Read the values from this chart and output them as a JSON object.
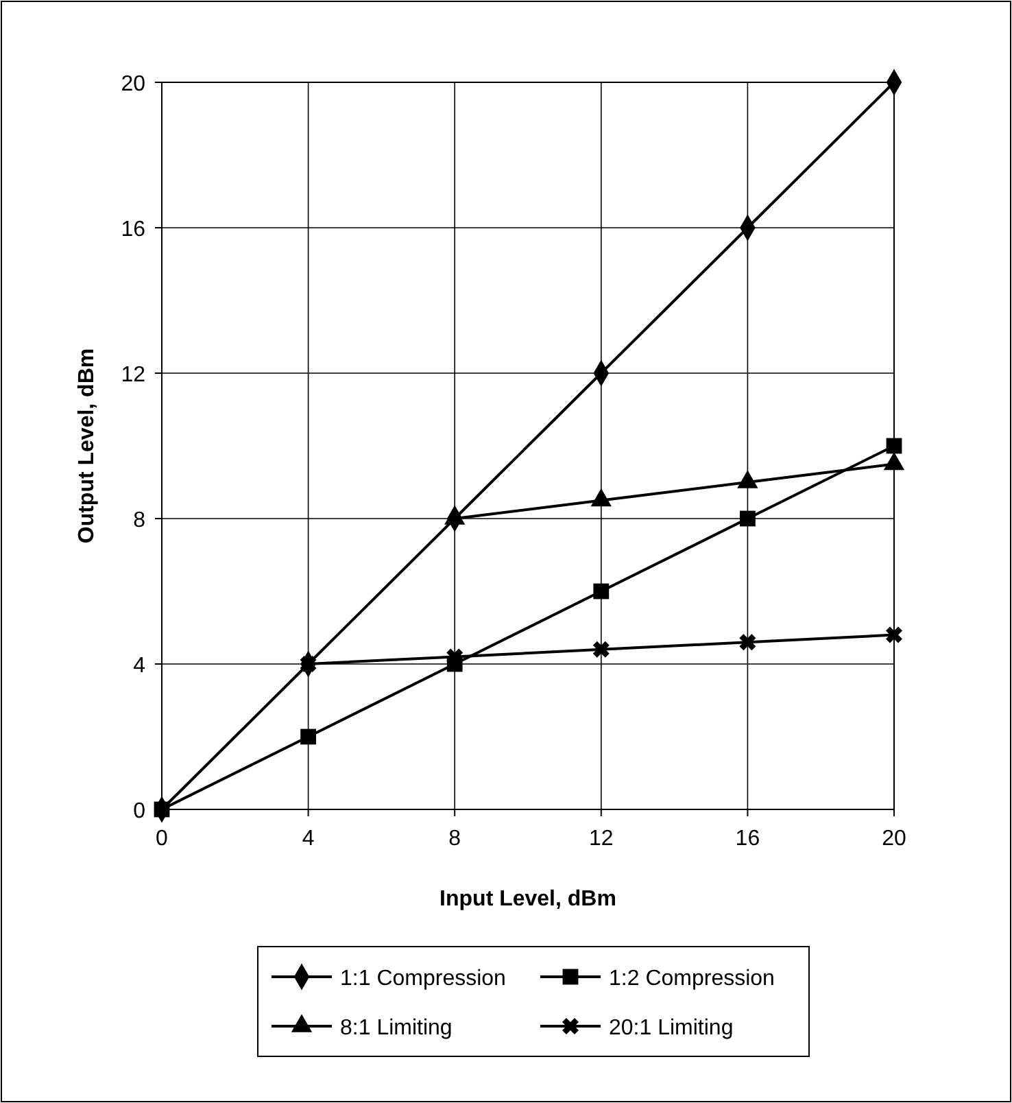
{
  "chart_data": {
    "type": "line",
    "xlabel": "Input Level, dBm",
    "ylabel": "Output Level, dBm",
    "x": [
      0,
      4,
      8,
      12,
      16,
      20
    ],
    "series": [
      {
        "name": "1:1 Compression",
        "color": "#000000",
        "marker": "diamond",
        "values": [
          0,
          4,
          8,
          12,
          16,
          20
        ]
      },
      {
        "name": "1:2 Compression",
        "color": "#000000",
        "marker": "square",
        "values": [
          0,
          2,
          4,
          6,
          8,
          10
        ]
      },
      {
        "name": "8:1 Limiting",
        "color": "#000000",
        "marker": "triangle",
        "x": [
          8,
          12,
          16,
          20
        ],
        "values": [
          8,
          8.5,
          9,
          9.5
        ]
      },
      {
        "name": "20:1 Limiting",
        "color": "#000000",
        "marker": "cross",
        "x": [
          4,
          8,
          12,
          16,
          20
        ],
        "values": [
          4,
          4.2,
          4.4,
          4.6,
          4.8
        ]
      }
    ],
    "xlim": [
      0,
      20
    ],
    "xticks": [
      0,
      4,
      8,
      12,
      16,
      20
    ],
    "ylim": [
      0,
      20
    ],
    "yticks": [
      0,
      4,
      8,
      12,
      16,
      20
    ],
    "grid": true,
    "legend": "bottom",
    "line_style": "solid"
  }
}
